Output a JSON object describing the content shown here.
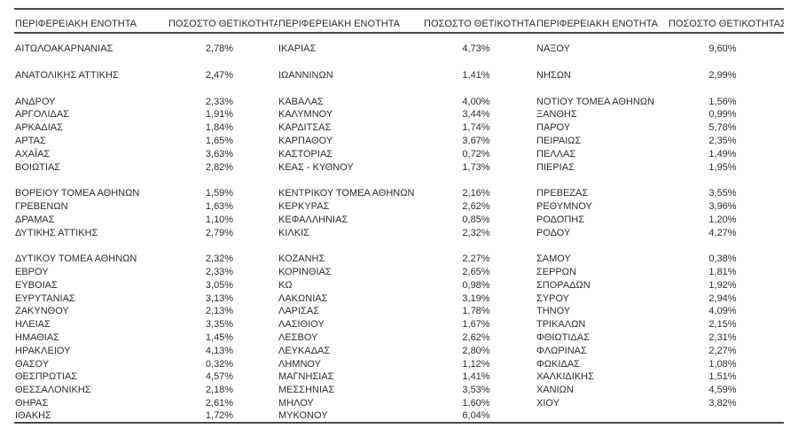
{
  "colors": {
    "background": "#ffffff",
    "text": "#2e2e2e",
    "rule": "#4a4a4a"
  },
  "table": {
    "header_region_label": "ΠΕΡΙΦΕΡΕΙΑΚΗ ΕΝΟΤΗΤΑ",
    "header_rate_label": "ΠΟΣΟΣΤΟ ΘΕΤΙΚΟΤΗΤΑΣ",
    "rows": [
      {
        "cells": [
          [
            "ΑΙΤΩΛΟΑΚΑΡΝΑΝΙΑΣ",
            "2,78%"
          ],
          [
            "ΙΚΑΡΙΑΣ",
            "4,73%"
          ],
          [
            "ΝΑΞΟΥ",
            "9,60%"
          ]
        ]
      },
      {
        "blank": true
      },
      {
        "cells": [
          [
            "ΑΝΑΤΟΛΙΚΗΣ ΑΤΤΙΚΗΣ",
            "2,47%"
          ],
          [
            "ΙΩΑΝΝΙΝΩΝ",
            "1,41%"
          ],
          [
            "ΝΗΣΩΝ",
            "2,99%"
          ]
        ]
      },
      {
        "blank": true
      },
      {
        "cells": [
          [
            "ΑΝΔΡΟΥ",
            "2,33%"
          ],
          [
            "ΚΑΒΑΛΑΣ",
            "4,00%"
          ],
          [
            "ΝΟΤΙΟΥ ΤΟΜΕΑ ΑΘΗΝΩΝ",
            "1,56%"
          ]
        ]
      },
      {
        "cells": [
          [
            "ΑΡΓΟΛΙΔΑΣ",
            "1,91%"
          ],
          [
            "ΚΑΛΥΜΝΟΥ",
            "3,44%"
          ],
          [
            "ΞΑΝΘΗΣ",
            "0,99%"
          ]
        ]
      },
      {
        "cells": [
          [
            "ΑΡΚΑΔΙΑΣ",
            "1,84%"
          ],
          [
            "ΚΑΡΔΙΤΣΑΣ",
            "1,74%"
          ],
          [
            "ΠΑΡΟΥ",
            "5,78%"
          ]
        ]
      },
      {
        "cells": [
          [
            "ΑΡΤΑΣ",
            "1,65%"
          ],
          [
            "ΚΑΡΠΑΘΟΥ",
            "3,67%"
          ],
          [
            "ΠΕΙΡΑΙΩΣ",
            "2,35%"
          ]
        ]
      },
      {
        "cells": [
          [
            "ΑΧΑΪΑΣ",
            "3,63%"
          ],
          [
            "ΚΑΣΤΟΡΙΑΣ",
            "0,72%"
          ],
          [
            "ΠΕΛΛΑΣ",
            "1,49%"
          ]
        ]
      },
      {
        "cells": [
          [
            "ΒΟΙΩΤΙΑΣ",
            "2,82%"
          ],
          [
            "ΚΕΑΣ - ΚΥΘΝΟΥ",
            "1,73%"
          ],
          [
            "ΠΙΕΡΙΑΣ",
            "1,95%"
          ]
        ]
      },
      {
        "blank": true
      },
      {
        "cells": [
          [
            "ΒΟΡΕΙΟΥ ΤΟΜΕΑ ΑΘΗΝΩΝ",
            "1,59%"
          ],
          [
            "ΚΕΝΤΡΙΚΟΥ ΤΟΜΕΑ ΑΘΗΝΩΝ",
            "2,16%"
          ],
          [
            "ΠΡΕΒΕΖΑΣ",
            "3,55%"
          ]
        ]
      },
      {
        "cells": [
          [
            "ΓΡΕΒΕΝΩΝ",
            "1,63%"
          ],
          [
            "ΚΕΡΚΥΡΑΣ",
            "2,62%"
          ],
          [
            "ΡΕΘΥΜΝΟΥ",
            "3,96%"
          ]
        ]
      },
      {
        "cells": [
          [
            "ΔΡΑΜΑΣ",
            "1,10%"
          ],
          [
            "ΚΕΦΑΛΛΗΝΙΑΣ",
            "0,85%"
          ],
          [
            "ΡΟΔΟΠΗΣ",
            "1,20%"
          ]
        ]
      },
      {
        "cells": [
          [
            "ΔΥΤΙΚΗΣ ΑΤΤΙΚΗΣ",
            "2,79%"
          ],
          [
            "ΚΙΛΚΙΣ",
            "2,32%"
          ],
          [
            "ΡΟΔΟΥ",
            "4,27%"
          ]
        ]
      },
      {
        "blank": true
      },
      {
        "cells": [
          [
            "ΔΥΤΙΚΟΥ ΤΟΜΕΑ ΑΘΗΝΩΝ",
            "2,32%"
          ],
          [
            "ΚΟΖΑΝΗΣ",
            "2,27%"
          ],
          [
            "ΣΑΜΟΥ",
            "0,38%"
          ]
        ]
      },
      {
        "cells": [
          [
            "ΕΒΡΟΥ",
            "2,33%"
          ],
          [
            "ΚΟΡΙΝΘΙΑΣ",
            "2,65%"
          ],
          [
            "ΣΕΡΡΩΝ",
            "1,81%"
          ]
        ]
      },
      {
        "cells": [
          [
            "ΕΥΒΟΙΑΣ",
            "3,05%"
          ],
          [
            "ΚΩ",
            "0,98%"
          ],
          [
            "ΣΠΟΡΑΔΩΝ",
            "1,92%"
          ]
        ]
      },
      {
        "cells": [
          [
            "ΕΥΡΥΤΑΝΙΑΣ",
            "3,13%"
          ],
          [
            "ΛΑΚΩΝΙΑΣ",
            "3,19%"
          ],
          [
            "ΣΥΡΟΥ",
            "2,94%"
          ]
        ]
      },
      {
        "cells": [
          [
            "ΖΑΚΥΝΘΟΥ",
            "2,13%"
          ],
          [
            "ΛΑΡΙΣΑΣ",
            "1,78%"
          ],
          [
            "ΤΗΝΟΥ",
            "4,09%"
          ]
        ]
      },
      {
        "cells": [
          [
            "ΗΛΕΙΑΣ",
            "3,35%"
          ],
          [
            "ΛΑΣΙΘΙΟΥ",
            "1,67%"
          ],
          [
            "ΤΡΙΚΑΛΩΝ",
            "2,15%"
          ]
        ]
      },
      {
        "cells": [
          [
            "ΗΜΑΘΙΑΣ",
            "1,45%"
          ],
          [
            "ΛΕΣΒΟΥ",
            "2,62%"
          ],
          [
            "ΦΘΙΩΤΙΔΑΣ",
            "2,31%"
          ]
        ]
      },
      {
        "cells": [
          [
            "ΗΡΑΚΛΕΙΟΥ",
            "4,13%"
          ],
          [
            "ΛΕΥΚΑΔΑΣ",
            "2,80%"
          ],
          [
            "ΦΛΩΡΙΝΑΣ",
            "2,27%"
          ]
        ]
      },
      {
        "cells": [
          [
            "ΘΑΣΟΥ",
            "0,32%"
          ],
          [
            "ΛΗΜΝΟΥ",
            "1,12%"
          ],
          [
            "ΦΩΚΙΔΑΣ",
            "1,08%"
          ]
        ]
      },
      {
        "cells": [
          [
            "ΘΕΣΠΡΩΤΙΑΣ",
            "4,57%"
          ],
          [
            "ΜΑΓΝΗΣΙΑΣ",
            "1,41%"
          ],
          [
            "ΧΑΛΚΙΔΙΚΗΣ",
            "1,51%"
          ]
        ]
      },
      {
        "cells": [
          [
            "ΘΕΣΣΑΛΟΝΙΚΗΣ",
            "2,18%"
          ],
          [
            "ΜΕΣΣΗΝΙΑΣ",
            "3,53%"
          ],
          [
            "ΧΑΝΙΩΝ",
            "4,59%"
          ]
        ]
      },
      {
        "cells": [
          [
            "ΘΗΡΑΣ",
            "2,61%"
          ],
          [
            "ΜΗΛΟΥ",
            "1,60%"
          ],
          [
            "ΧΙΟΥ",
            "3,82%"
          ]
        ]
      },
      {
        "cells": [
          [
            "ΙΘΑΚΗΣ",
            "1,72%"
          ],
          [
            "ΜΥΚΟΝΟΥ",
            "6,04%"
          ],
          [
            "",
            ""
          ]
        ]
      }
    ]
  }
}
